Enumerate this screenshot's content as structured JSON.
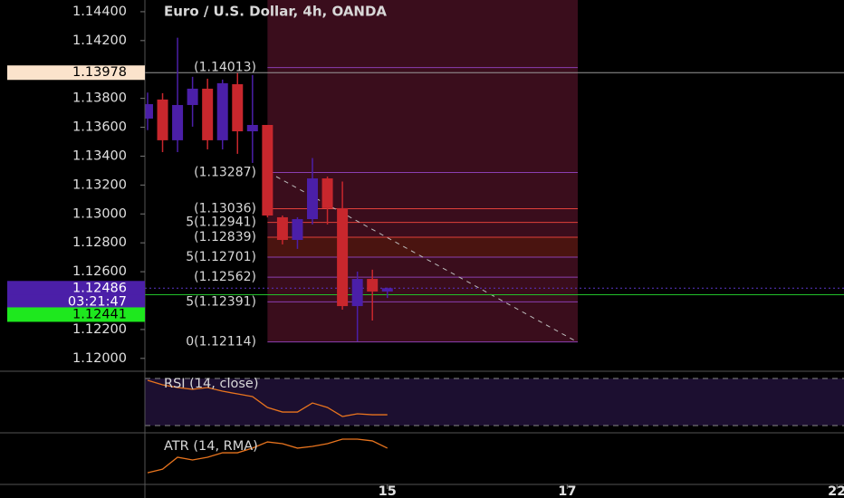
{
  "chart_data": {
    "type": "candlestick",
    "title": "Euro / U.S. Dollar, 4h, OANDA",
    "categories": [
      null,
      null,
      null,
      null,
      null,
      null,
      null,
      null,
      null,
      null,
      null,
      null,
      null,
      null,
      null,
      null,
      null
    ],
    "open": [
      1.1366,
      1.13792,
      1.1351,
      1.13754,
      1.13867,
      1.1351,
      1.13898,
      1.13572,
      1.13616,
      1.12977,
      1.1282,
      1.12964,
      1.13246,
      1.1304,
      1.12362,
      1.1255,
      1.12463
    ],
    "high": [
      1.1384,
      1.13836,
      1.1422,
      1.13949,
      1.13936,
      1.1393,
      1.13975,
      1.13962,
      1.13616,
      1.12989,
      1.12977,
      1.13387,
      1.13259,
      1.13224,
      1.12601,
      1.12614,
      1.1249
    ],
    "low": [
      1.1358,
      1.13428,
      1.13428,
      1.13604,
      1.13447,
      1.13447,
      1.13416,
      1.13353,
      1.12976,
      1.12789,
      1.12758,
      1.12927,
      1.12927,
      1.12337,
      1.12118,
      1.12262,
      1.12418
    ],
    "close": [
      1.1376,
      1.1351,
      1.13754,
      1.13867,
      1.1351,
      1.13905,
      1.13572,
      1.13616,
      1.12989,
      1.1282,
      1.12964,
      1.13246,
      1.1304,
      1.12362,
      1.1255,
      1.12463,
      1.12486
    ],
    "up_color": "#4b1fa8",
    "down_color": "#c8272d",
    "ylim": [
      1.11911,
      1.14481
    ],
    "xlim": [
      -0.18,
      46.47
    ],
    "yticks": [
      {
        "value": 1.144,
        "label": "1.14400"
      },
      {
        "value": 1.142,
        "label": "1.14200"
      },
      {
        "value": 1.138,
        "label": "1.13800"
      },
      {
        "value": 1.136,
        "label": "1.13600"
      },
      {
        "value": 1.134,
        "label": "1.13400"
      },
      {
        "value": 1.132,
        "label": "1.13200"
      },
      {
        "value": 1.13,
        "label": "1.13000"
      },
      {
        "value": 1.128,
        "label": "1.12800"
      },
      {
        "value": 1.126,
        "label": "1.12600"
      },
      {
        "value": 1.122,
        "label": "1.12200"
      },
      {
        "value": 1.12,
        "label": "1.12000"
      }
    ],
    "xticks": [
      {
        "value": 16,
        "label": "15"
      },
      {
        "value": 28,
        "label": "17"
      },
      {
        "value": 46,
        "label": "22"
      }
    ],
    "crosshair": {
      "value": 1.13978,
      "label": "1.13978"
    },
    "last_price": {
      "value": 1.12486,
      "label": "1.12486"
    },
    "timer": "03:21:47",
    "line_price": {
      "value": 1.12441,
      "label": "1.12441"
    },
    "fib_levels": [
      {
        "value": 1.14013,
        "label": "(1.14013)",
        "color": "#8a3fb0"
      },
      {
        "value": 1.13287,
        "label": "(1.13287)",
        "color": "#8a3fb0"
      },
      {
        "value": 1.13036,
        "label": "(1.13036)",
        "color": "#e0403a"
      },
      {
        "value": 1.12941,
        "label": "5(1.12941)",
        "color": "#e0403a"
      },
      {
        "value": 1.12839,
        "label": "(1.12839)",
        "color": "#e0403a"
      },
      {
        "value": 1.12701,
        "label": "5(1.12701)",
        "color": "#8a3fb0"
      },
      {
        "value": 1.12562,
        "label": "(1.12562)",
        "color": "#8a3fb0"
      },
      {
        "value": 1.12391,
        "label": "5(1.12391)",
        "color": "#8a3fb0"
      },
      {
        "value": 1.12114,
        "label": "0(1.12114)",
        "color": "#8a3fb0"
      }
    ],
    "indicators": [
      {
        "name": "RSI (14, close)",
        "color": "#e8741e",
        "ylim": [
          23.85,
          76.15
        ],
        "levels": [
          70,
          30
        ],
        "values": [
          68.5,
          64.6,
          62.3,
          60.8,
          62.3,
          59.2,
          56.9,
          54.6,
          45.4,
          41.5,
          41.5,
          49.2,
          45.4,
          37.7,
          40,
          39.2,
          39.2
        ]
      },
      {
        "name": "ATR (14, RMA)",
        "color": "#e8741e",
        "ylim": [
          0.0005,
          0.0035
        ],
        "values": [
          0.00118,
          0.00139,
          0.00208,
          0.00192,
          0.00208,
          0.00234,
          0.00234,
          0.00261,
          0.00297,
          0.00287,
          0.00261,
          0.00271,
          0.00287,
          0.00313,
          0.00313,
          0.00303,
          0.00261
        ]
      }
    ]
  }
}
